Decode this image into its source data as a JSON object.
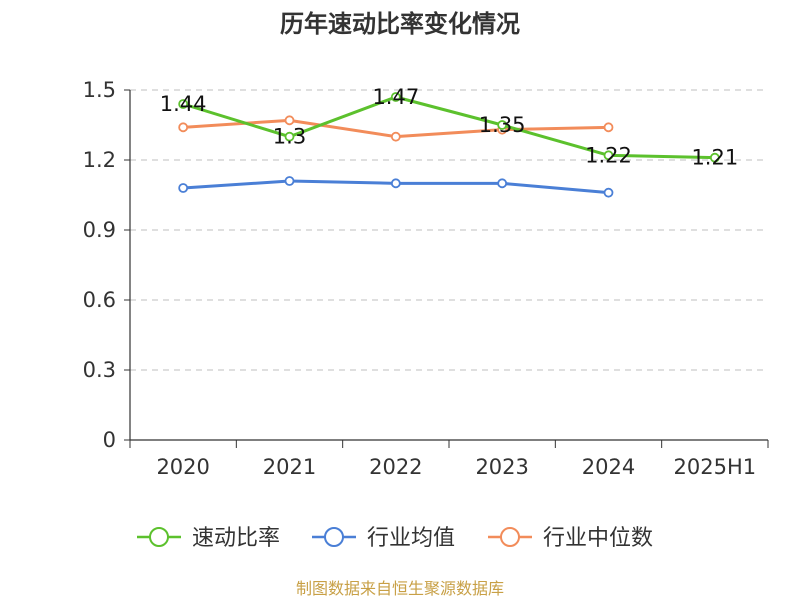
{
  "chart_data": {
    "type": "line",
    "title": "历年速动比率变化情况",
    "categories": [
      "2020",
      "2021",
      "2022",
      "2023",
      "2024",
      "2025H1"
    ],
    "y_ticks": [
      "0",
      "0.3",
      "0.6",
      "0.9",
      "1.2",
      "1.5"
    ],
    "ylim": [
      0,
      1.5
    ],
    "grid": true,
    "legend_position": "bottom",
    "series": [
      {
        "name": "速动比率",
        "color": "#5cc12d",
        "values": [
          1.44,
          1.3,
          1.47,
          1.35,
          1.22,
          1.21
        ],
        "labels": [
          "1.44",
          "1.3",
          "1.47",
          "1.35",
          "1.22",
          "1.21"
        ],
        "show_labels": true
      },
      {
        "name": "行业均值",
        "color": "#4a7fd6",
        "values": [
          1.08,
          1.11,
          1.1,
          1.1,
          1.06,
          null
        ],
        "show_labels": false
      },
      {
        "name": "行业中位数",
        "color": "#f28c5a",
        "values": [
          1.34,
          1.37,
          1.3,
          1.33,
          1.34,
          null
        ],
        "show_labels": false
      }
    ]
  },
  "source_text": "制图数据来自恒生聚源数据库"
}
